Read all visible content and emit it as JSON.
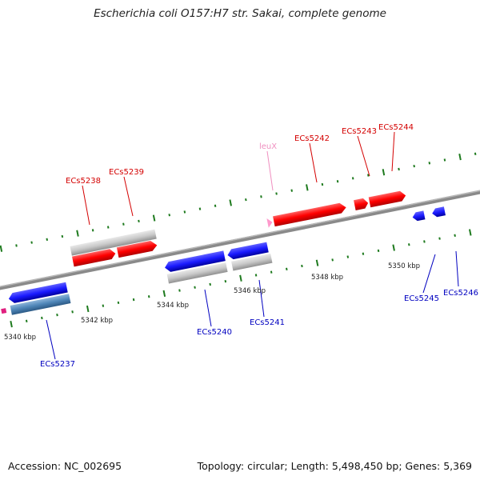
{
  "title": "Escherichia coli O157:H7 str. Sakai, complete genome",
  "footer": {
    "accession": "Accession: NC_002695",
    "summary": "Topology: circular; Length: 5,498,450 bp; Genes: 5,369"
  },
  "kbp_labels": [
    "5340 kbp",
    "5342 kbp",
    "5344 kbp",
    "5346 kbp",
    "5348 kbp",
    "5350 kbp"
  ],
  "genes_top": [
    {
      "label": "ECs5238",
      "color": "#d40000"
    },
    {
      "label": "ECs5239",
      "color": "#d40000"
    },
    {
      "label": "leuX",
      "color": "#f090c0"
    },
    {
      "label": "ECs5242",
      "color": "#d40000"
    },
    {
      "label": "ECs5243",
      "color": "#d40000"
    },
    {
      "label": "ECs5244",
      "color": "#d40000"
    }
  ],
  "genes_bottom": [
    {
      "label": "ECs5237",
      "color": "#0000c0"
    },
    {
      "label": "ECs5240",
      "color": "#0000c0"
    },
    {
      "label": "ECs5241",
      "color": "#0000c0"
    },
    {
      "label": "ECs5245",
      "color": "#0000c0"
    },
    {
      "label": "ECs5246",
      "color": "#0000c0"
    }
  ],
  "colors": {
    "forward_gene": "#ff0000",
    "reverse_gene": "#1a1aff",
    "feature_gray": "#c8c8c8",
    "feature_steel": "#4f86b8",
    "trna": "#ff99cc",
    "tick_green": "#1e7a1e",
    "backbone": "#808080"
  }
}
